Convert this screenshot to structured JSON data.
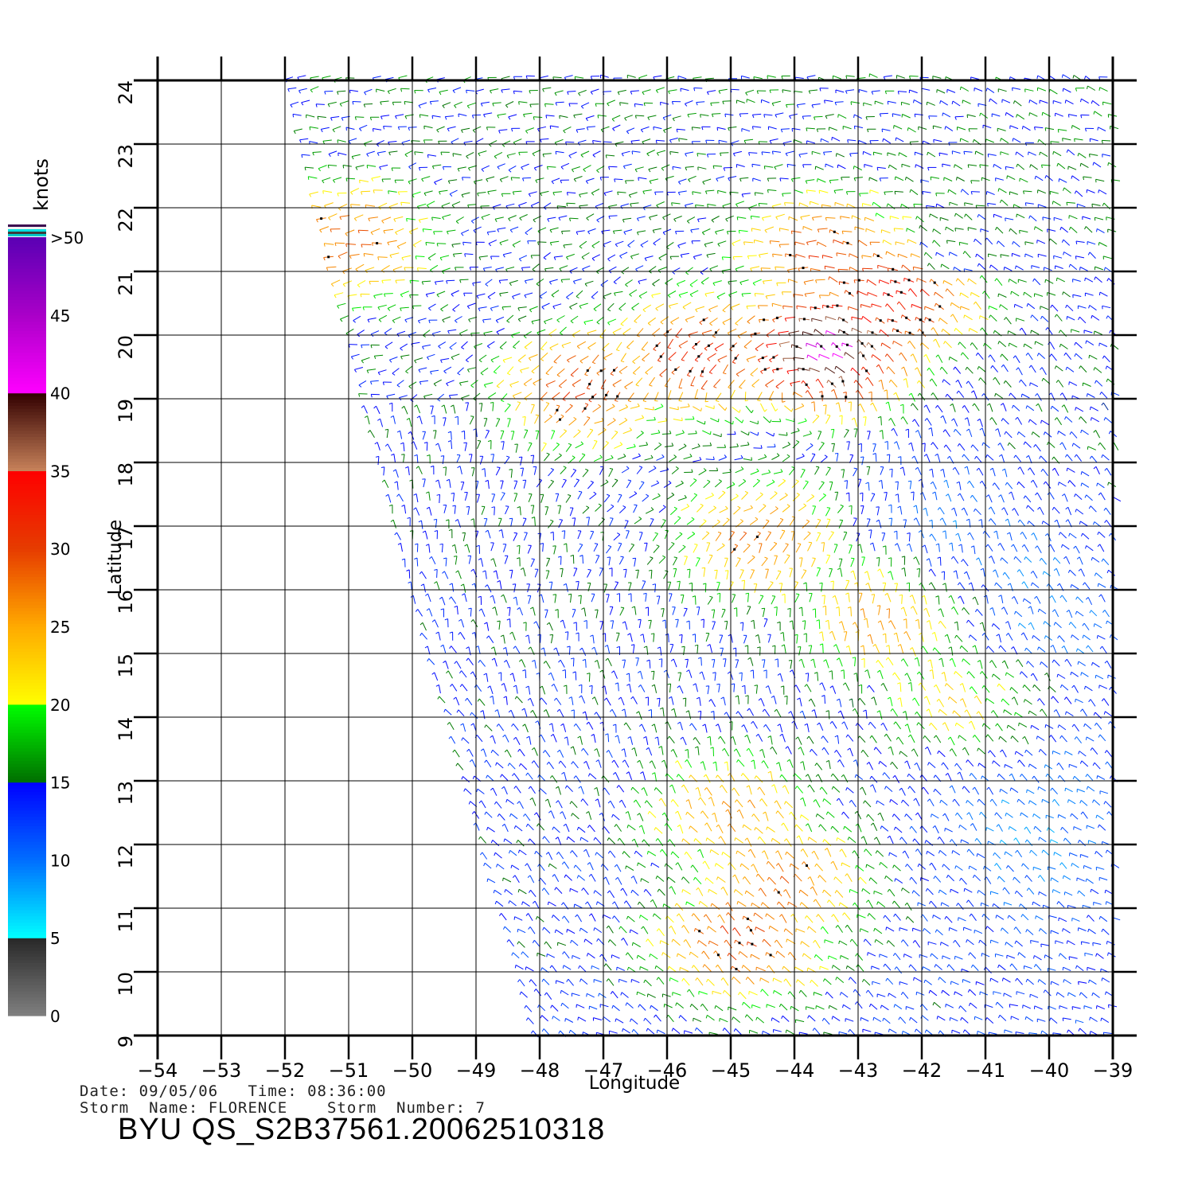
{
  "map": {
    "lon_range": [
      -54,
      -39
    ],
    "lat_range": [
      9,
      24
    ],
    "lon_ticks": [
      -54,
      -53,
      -52,
      -51,
      -50,
      -49,
      -48,
      -47,
      -46,
      -45,
      -44,
      -43,
      -42,
      -41,
      -40,
      -39
    ],
    "lon_tick_labels": [
      "−54",
      "−53",
      "−52",
      "−51",
      "−50",
      "−49",
      "−48",
      "−47",
      "−46",
      "−45",
      "−44",
      "−43",
      "−42",
      "−41",
      "−40",
      "−39"
    ],
    "lat_ticks": [
      9,
      10,
      11,
      12,
      13,
      14,
      15,
      16,
      17,
      18,
      19,
      20,
      21,
      22,
      23,
      24
    ],
    "lat_tick_labels": [
      "9",
      "10",
      "11",
      "12",
      "13",
      "14",
      "15",
      "16",
      "17",
      "18",
      "19",
      "20",
      "21",
      "22",
      "23",
      "24"
    ],
    "xlabel": "Longitude",
    "ylabel": "Latitude",
    "grid": true,
    "swath_left_edge": [
      [
        -52.0,
        24
      ],
      [
        -50.8,
        19
      ],
      [
        -49.9,
        15.5
      ],
      [
        -48.1,
        9
      ]
    ],
    "layer": "QuikSCAT wind barbs",
    "wind_maxima": [
      {
        "lon": -45.5,
        "lat": 19.7,
        "knots": 32
      },
      {
        "lon": -43.5,
        "lat": 19.8,
        "knots": 42
      },
      {
        "lon": -42.5,
        "lat": 20.6,
        "knots": 34
      },
      {
        "lon": -43.5,
        "lat": 21.3,
        "knots": 30
      },
      {
        "lon": -47.3,
        "lat": 19.2,
        "knots": 30
      },
      {
        "lon": -51.0,
        "lat": 21.5,
        "knots": 28
      },
      {
        "lon": -44.5,
        "lat": 16.8,
        "knots": 28
      },
      {
        "lon": -42.5,
        "lat": 15.6,
        "knots": 28
      },
      {
        "lon": -44.2,
        "lat": 11.4,
        "knots": 28
      },
      {
        "lon": -44.8,
        "lat": 10.5,
        "knots": 30
      },
      {
        "lon": -45.0,
        "lat": 12.5,
        "knots": 26
      },
      {
        "lon": -41.3,
        "lat": 14.4,
        "knots": 24
      }
    ],
    "calm_zones": [
      {
        "lon": -40.2,
        "lat": 12.2,
        "knots": 6
      },
      {
        "lon": -40.0,
        "lat": 15.6,
        "knots": 7
      },
      {
        "lon": -41.5,
        "lat": 17.0,
        "knots": 8
      }
    ]
  },
  "colorbar": {
    "title": "knots",
    "tick_labels": [
      {
        "label": "0",
        "value": 0
      },
      {
        "label": "5",
        "value": 5
      },
      {
        "label": "10",
        "value": 10
      },
      {
        "label": "15",
        "value": 15
      },
      {
        "label": "20",
        "value": 20
      },
      {
        "label": "25",
        "value": 25
      },
      {
        "label": "30",
        "value": 30
      },
      {
        "label": "35",
        "value": 35
      },
      {
        "label": "40",
        "value": 40
      },
      {
        "label": "45",
        "value": 45
      },
      {
        "label": ">50",
        "value": 50
      }
    ],
    "top_stripe_colors": [
      "#3c0a50",
      "#f0f0f0",
      "#00e0e0",
      "#3c3c3c",
      "#00c8c8"
    ]
  },
  "footer": {
    "line1": "Date: 09/05/06   Time: 08:36:00",
    "line2": "Storm  Name: FLORENCE    Storm  Number: 7",
    "id": "BYU  QS_S2B37561.20062510318"
  }
}
